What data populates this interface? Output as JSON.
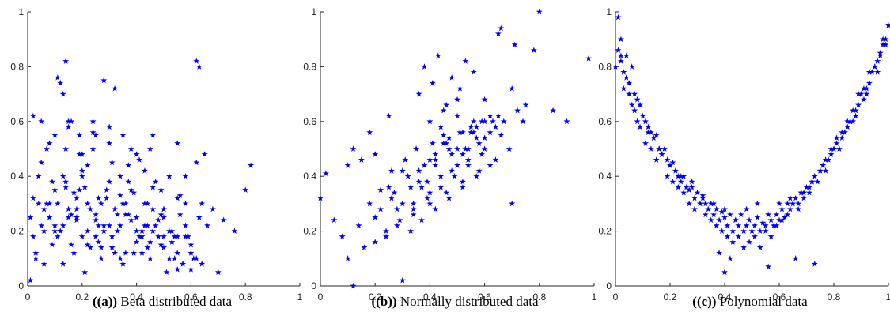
{
  "colors": {
    "marker": "#0000ff",
    "axis": "#262626"
  },
  "marker": "star",
  "chart_data": [
    {
      "type": "scatter",
      "caption_tag": "((a))",
      "caption_text": " Beta distributed data",
      "title": "",
      "xlabel": "",
      "ylabel": "",
      "xlim": [
        0,
        1
      ],
      "ylim": [
        0,
        1
      ],
      "x_ticks": [
        0,
        0.2,
        0.4,
        0.6,
        0.8,
        1
      ],
      "y_ticks": [
        0,
        0.2,
        0.4,
        0.6,
        0.8,
        1
      ],
      "x_tick_labels": [
        "0",
        "0.2",
        "0.4",
        "0.6",
        "0.8",
        "1"
      ],
      "y_tick_labels": [
        "0",
        "0.2",
        "0.4",
        "0.6",
        "0.8",
        "1"
      ],
      "grid": false,
      "x": [
        0.02,
        0.05,
        0.08,
        0.1,
        0.12,
        0.14,
        0.16,
        0.18,
        0.2,
        0.22,
        0.24,
        0.26,
        0.28,
        0.3,
        0.32,
        0.34,
        0.36,
        0.38,
        0.4,
        0.42,
        0.44,
        0.46,
        0.48,
        0.5,
        0.52,
        0.54,
        0.56,
        0.58,
        0.6,
        0.62,
        0.64,
        0.68,
        0.72,
        0.76,
        0.8,
        0.82,
        0.03,
        0.06,
        0.09,
        0.11,
        0.13,
        0.15,
        0.17,
        0.19,
        0.21,
        0.23,
        0.25,
        0.27,
        0.29,
        0.31,
        0.33,
        0.35,
        0.37,
        0.39,
        0.41,
        0.43,
        0.45,
        0.47,
        0.49,
        0.51,
        0.53,
        0.55,
        0.57,
        0.59,
        0.61,
        0.63,
        0.01,
        0.04,
        0.07,
        0.1,
        0.13,
        0.16,
        0.19,
        0.22,
        0.25,
        0.28,
        0.31,
        0.34,
        0.37,
        0.4,
        0.43,
        0.46,
        0.49,
        0.52,
        0.55,
        0.58,
        0.02,
        0.06,
        0.1,
        0.14,
        0.18,
        0.22,
        0.26,
        0.3,
        0.34,
        0.38,
        0.42,
        0.46,
        0.5,
        0.54,
        0.58,
        0.62,
        0.66,
        0.7,
        0.12,
        0.11,
        0.13,
        0.14,
        0.28,
        0.32,
        0.62,
        0.63,
        0.05,
        0.08,
        0.15,
        0.2,
        0.24,
        0.35,
        0.45,
        0.55,
        0.65,
        0.04,
        0.09,
        0.17,
        0.21,
        0.27,
        0.33,
        0.39,
        0.44,
        0.5,
        0.56,
        0.01,
        0.03,
        0.07,
        0.12,
        0.18,
        0.23,
        0.29,
        0.36,
        0.42,
        0.48,
        0.53,
        0.6,
        0.02,
        0.08,
        0.14,
        0.2,
        0.26,
        0.32,
        0.38,
        0.44,
        0.5,
        0.57,
        0.15,
        0.19,
        0.24,
        0.3,
        0.37,
        0.41,
        0.47,
        0.05,
        0.11,
        0.16,
        0.22,
        0.27,
        0.34,
        0.4,
        0.46,
        0.52,
        0.58,
        0.64,
        0.06,
        0.13,
        0.18,
        0.25,
        0.31,
        0.36,
        0.43,
        0.49,
        0.55,
        0.6,
        0.1,
        0.15,
        0.2,
        0.25,
        0.3,
        0.35,
        0.4,
        0.45,
        0.5,
        0.55
      ],
      "y": [
        0.62,
        0.45,
        0.3,
        0.55,
        0.2,
        0.38,
        0.6,
        0.25,
        0.42,
        0.15,
        0.5,
        0.32,
        0.22,
        0.58,
        0.28,
        0.4,
        0.12,
        0.35,
        0.48,
        0.2,
        0.3,
        0.55,
        0.18,
        0.25,
        0.4,
        0.1,
        0.33,
        0.22,
        0.15,
        0.45,
        0.3,
        0.28,
        0.24,
        0.2,
        0.35,
        0.44,
        0.1,
        0.2,
        0.15,
        0.3,
        0.08,
        0.25,
        0.12,
        0.35,
        0.05,
        0.28,
        0.18,
        0.1,
        0.32,
        0.14,
        0.2,
        0.08,
        0.26,
        0.12,
        0.18,
        0.3,
        0.1,
        0.22,
        0.15,
        0.05,
        0.2,
        0.12,
        0.08,
        0.18,
        0.1,
        0.25,
        0.02,
        0.3,
        0.5,
        0.22,
        0.4,
        0.15,
        0.48,
        0.3,
        0.55,
        0.2,
        0.45,
        0.33,
        0.38,
        0.25,
        0.42,
        0.28,
        0.35,
        0.2,
        0.32,
        0.4,
        0.18,
        0.08,
        0.35,
        0.5,
        0.24,
        0.44,
        0.16,
        0.38,
        0.22,
        0.5,
        0.12,
        0.36,
        0.28,
        0.18,
        0.3,
        0.1,
        0.22,
        0.05,
        0.74,
        0.76,
        0.7,
        0.82,
        0.75,
        0.72,
        0.82,
        0.8,
        0.6,
        0.52,
        0.58,
        0.48,
        0.56,
        0.55,
        0.5,
        0.52,
        0.48,
        0.4,
        0.38,
        0.34,
        0.36,
        0.3,
        0.26,
        0.34,
        0.22,
        0.28,
        0.26,
        0.25,
        0.12,
        0.3,
        0.2,
        0.28,
        0.14,
        0.35,
        0.26,
        0.18,
        0.24,
        0.16,
        0.06,
        0.32,
        0.25,
        0.36,
        0.4,
        0.22,
        0.12,
        0.24,
        0.14,
        0.18,
        0.08,
        0.6,
        0.55,
        0.6,
        0.52,
        0.44,
        0.46,
        0.38,
        0.22,
        0.18,
        0.26,
        0.2,
        0.14,
        0.1,
        0.16,
        0.2,
        0.1,
        0.18,
        0.08,
        0.28,
        0.22,
        0.32,
        0.24,
        0.18,
        0.3,
        0.22,
        0.26,
        0.18,
        0.12,
        0.2,
        0.28,
        0.18,
        0.26,
        0.22,
        0.3,
        0.2,
        0.16,
        0.14,
        0.06
      ]
    },
    {
      "type": "scatter",
      "caption_tag": "((b))",
      "caption_text": " Normally distributed data",
      "title": "",
      "xlabel": "",
      "ylabel": "",
      "xlim": [
        0,
        1
      ],
      "ylim": [
        0,
        1
      ],
      "x_ticks": [
        0,
        0.2,
        0.4,
        0.6,
        0.8,
        1
      ],
      "y_ticks": [
        0,
        0.2,
        0.4,
        0.6,
        0.8,
        1
      ],
      "x_tick_labels": [
        "0",
        "0.2",
        "0.4",
        "0.6",
        "0.8",
        "1"
      ],
      "y_tick_labels": [
        "0",
        "0.2",
        "0.4",
        "0.6",
        "0.8",
        "1"
      ],
      "grid": false,
      "x": [
        0.0,
        0.02,
        0.05,
        0.08,
        0.1,
        0.12,
        0.14,
        0.16,
        0.18,
        0.2,
        0.22,
        0.24,
        0.26,
        0.28,
        0.3,
        0.32,
        0.34,
        0.36,
        0.38,
        0.4,
        0.42,
        0.44,
        0.46,
        0.48,
        0.5,
        0.52,
        0.54,
        0.56,
        0.58,
        0.6,
        0.62,
        0.64,
        0.66,
        0.7,
        0.74,
        0.8,
        0.85,
        0.9,
        0.98,
        0.1,
        0.15,
        0.2,
        0.25,
        0.3,
        0.35,
        0.4,
        0.45,
        0.5,
        0.55,
        0.6,
        0.65,
        0.7,
        0.75,
        0.78,
        0.22,
        0.27,
        0.32,
        0.37,
        0.42,
        0.47,
        0.52,
        0.57,
        0.62,
        0.67,
        0.72,
        0.3,
        0.33,
        0.36,
        0.39,
        0.42,
        0.45,
        0.48,
        0.51,
        0.54,
        0.57,
        0.6,
        0.63,
        0.26,
        0.31,
        0.35,
        0.38,
        0.41,
        0.44,
        0.47,
        0.5,
        0.53,
        0.56,
        0.59,
        0.28,
        0.34,
        0.4,
        0.46,
        0.52,
        0.58,
        0.64,
        0.2,
        0.24,
        0.29,
        0.34,
        0.39,
        0.44,
        0.49,
        0.54,
        0.59,
        0.36,
        0.41,
        0.46,
        0.51,
        0.56,
        0.12,
        0.18,
        0.25,
        0.38,
        0.43,
        0.48,
        0.53,
        0.66,
        0.71,
        0.33,
        0.37,
        0.42,
        0.47,
        0.52,
        0.57,
        0.62,
        0.4,
        0.45,
        0.5,
        0.55,
        0.6,
        0.65,
        0.69
      ],
      "y": [
        0.32,
        0.41,
        0.24,
        0.18,
        0.1,
        0.0,
        0.22,
        0.14,
        0.3,
        0.25,
        0.35,
        0.18,
        0.32,
        0.28,
        0.02,
        0.4,
        0.3,
        0.38,
        0.44,
        0.34,
        0.48,
        0.4,
        0.52,
        0.42,
        0.5,
        0.56,
        0.46,
        0.6,
        0.52,
        0.5,
        0.62,
        0.58,
        0.55,
        0.3,
        0.6,
        1.0,
        0.64,
        0.6,
        0.83,
        0.44,
        0.46,
        0.48,
        0.36,
        0.42,
        0.5,
        0.46,
        0.55,
        0.44,
        0.58,
        0.68,
        0.62,
        0.72,
        0.66,
        0.86,
        0.28,
        0.34,
        0.4,
        0.36,
        0.44,
        0.5,
        0.48,
        0.54,
        0.56,
        0.6,
        0.64,
        0.3,
        0.36,
        0.42,
        0.38,
        0.46,
        0.52,
        0.48,
        0.56,
        0.5,
        0.58,
        0.54,
        0.6,
        0.42,
        0.46,
        0.5,
        0.44,
        0.52,
        0.58,
        0.54,
        0.62,
        0.5,
        0.56,
        0.6,
        0.22,
        0.26,
        0.3,
        0.34,
        0.38,
        0.42,
        0.46,
        0.16,
        0.2,
        0.24,
        0.28,
        0.32,
        0.36,
        0.4,
        0.44,
        0.48,
        0.7,
        0.74,
        0.66,
        0.72,
        0.78,
        0.5,
        0.56,
        0.62,
        0.8,
        0.84,
        0.76,
        0.82,
        0.94,
        0.88,
        0.2,
        0.24,
        0.28,
        0.32,
        0.36,
        0.4,
        0.44,
        0.6,
        0.64,
        0.68,
        0.56,
        0.6,
        0.92,
        0.5
      ]
    },
    {
      "type": "scatter",
      "caption_tag": "((c))",
      "caption_text": " Polynomial data",
      "title": "",
      "xlabel": "",
      "ylabel": "",
      "xlim": [
        0,
        1
      ],
      "ylim": [
        0,
        1
      ],
      "x_ticks": [
        0,
        0.2,
        0.4,
        0.6,
        0.8,
        1
      ],
      "y_ticks": [
        0,
        0.2,
        0.4,
        0.6,
        0.8,
        1
      ],
      "x_tick_labels": [
        "0",
        "0.2",
        "0.4",
        "0.6",
        "0.8",
        "1"
      ],
      "y_tick_labels": [
        "0",
        "0.2",
        "0.4",
        "0.6",
        "0.8",
        "1"
      ],
      "grid": false,
      "x": [
        0.0,
        0.01,
        0.02,
        0.03,
        0.04,
        0.05,
        0.06,
        0.07,
        0.08,
        0.09,
        0.1,
        0.11,
        0.12,
        0.13,
        0.14,
        0.15,
        0.16,
        0.17,
        0.18,
        0.19,
        0.2,
        0.21,
        0.22,
        0.23,
        0.24,
        0.25,
        0.26,
        0.27,
        0.28,
        0.29,
        0.3,
        0.31,
        0.32,
        0.33,
        0.34,
        0.35,
        0.36,
        0.37,
        0.38,
        0.39,
        0.4,
        0.41,
        0.42,
        0.43,
        0.44,
        0.45,
        0.46,
        0.47,
        0.48,
        0.49,
        0.5,
        0.51,
        0.52,
        0.53,
        0.54,
        0.55,
        0.56,
        0.57,
        0.58,
        0.59,
        0.6,
        0.61,
        0.62,
        0.63,
        0.64,
        0.65,
        0.66,
        0.67,
        0.68,
        0.69,
        0.7,
        0.71,
        0.72,
        0.73,
        0.74,
        0.75,
        0.76,
        0.77,
        0.78,
        0.79,
        0.8,
        0.81,
        0.82,
        0.83,
        0.84,
        0.85,
        0.86,
        0.87,
        0.88,
        0.89,
        0.9,
        0.91,
        0.92,
        0.93,
        0.94,
        0.95,
        0.96,
        0.97,
        0.98,
        0.99,
        1.0,
        0.01,
        0.02,
        0.03,
        0.05,
        0.07,
        0.09,
        0.11,
        0.13,
        0.15,
        0.17,
        0.19,
        0.21,
        0.23,
        0.25,
        0.27,
        0.29,
        0.31,
        0.33,
        0.35,
        0.37,
        0.39,
        0.41,
        0.43,
        0.45,
        0.47,
        0.49,
        0.51,
        0.53,
        0.55,
        0.57,
        0.59,
        0.61,
        0.63,
        0.65,
        0.67,
        0.69,
        0.71,
        0.73,
        0.75,
        0.77,
        0.79,
        0.81,
        0.83,
        0.85,
        0.87,
        0.89,
        0.91,
        0.93,
        0.95,
        0.97,
        0.99,
        0.02,
        0.04,
        0.06,
        0.08,
        0.12,
        0.16,
        0.2,
        0.24,
        0.28,
        0.32,
        0.36,
        0.4,
        0.44,
        0.48,
        0.52,
        0.56,
        0.6,
        0.64,
        0.68,
        0.72,
        0.76,
        0.8,
        0.84,
        0.88,
        0.92,
        0.96,
        0.98,
        0.42,
        0.4,
        0.38,
        0.56,
        0.66,
        0.73
      ],
      "y": [
        0.8,
        0.86,
        0.9,
        0.78,
        0.84,
        0.74,
        0.8,
        0.7,
        0.68,
        0.66,
        0.62,
        0.6,
        0.58,
        0.56,
        0.54,
        0.55,
        0.5,
        0.48,
        0.5,
        0.46,
        0.44,
        0.45,
        0.42,
        0.4,
        0.38,
        0.4,
        0.36,
        0.35,
        0.38,
        0.32,
        0.34,
        0.3,
        0.33,
        0.3,
        0.28,
        0.3,
        0.26,
        0.28,
        0.24,
        0.27,
        0.25,
        0.22,
        0.26,
        0.2,
        0.24,
        0.22,
        0.26,
        0.2,
        0.22,
        0.24,
        0.2,
        0.22,
        0.25,
        0.2,
        0.23,
        0.22,
        0.26,
        0.24,
        0.22,
        0.26,
        0.24,
        0.28,
        0.25,
        0.3,
        0.28,
        0.3,
        0.32,
        0.3,
        0.34,
        0.32,
        0.36,
        0.34,
        0.38,
        0.4,
        0.38,
        0.42,
        0.44,
        0.42,
        0.46,
        0.48,
        0.5,
        0.52,
        0.5,
        0.54,
        0.56,
        0.58,
        0.6,
        0.6,
        0.64,
        0.66,
        0.7,
        0.68,
        0.72,
        0.74,
        0.78,
        0.8,
        0.82,
        0.84,
        0.88,
        0.9,
        0.95,
        0.98,
        0.84,
        0.72,
        0.7,
        0.64,
        0.58,
        0.52,
        0.5,
        0.46,
        0.48,
        0.4,
        0.38,
        0.36,
        0.34,
        0.3,
        0.28,
        0.3,
        0.26,
        0.24,
        0.22,
        0.2,
        0.18,
        0.16,
        0.18,
        0.14,
        0.16,
        0.18,
        0.14,
        0.2,
        0.18,
        0.22,
        0.24,
        0.26,
        0.3,
        0.28,
        0.34,
        0.36,
        0.4,
        0.42,
        0.46,
        0.5,
        0.54,
        0.56,
        0.6,
        0.64,
        0.7,
        0.72,
        0.78,
        0.8,
        0.85,
        0.88,
        0.82,
        0.76,
        0.66,
        0.6,
        0.56,
        0.5,
        0.44,
        0.4,
        0.36,
        0.32,
        0.3,
        0.28,
        0.24,
        0.28,
        0.3,
        0.26,
        0.3,
        0.32,
        0.34,
        0.38,
        0.44,
        0.5,
        0.56,
        0.62,
        0.7,
        0.78,
        0.9,
        0.1,
        0.05,
        0.12,
        0.07,
        0.1,
        0.08
      ]
    }
  ]
}
